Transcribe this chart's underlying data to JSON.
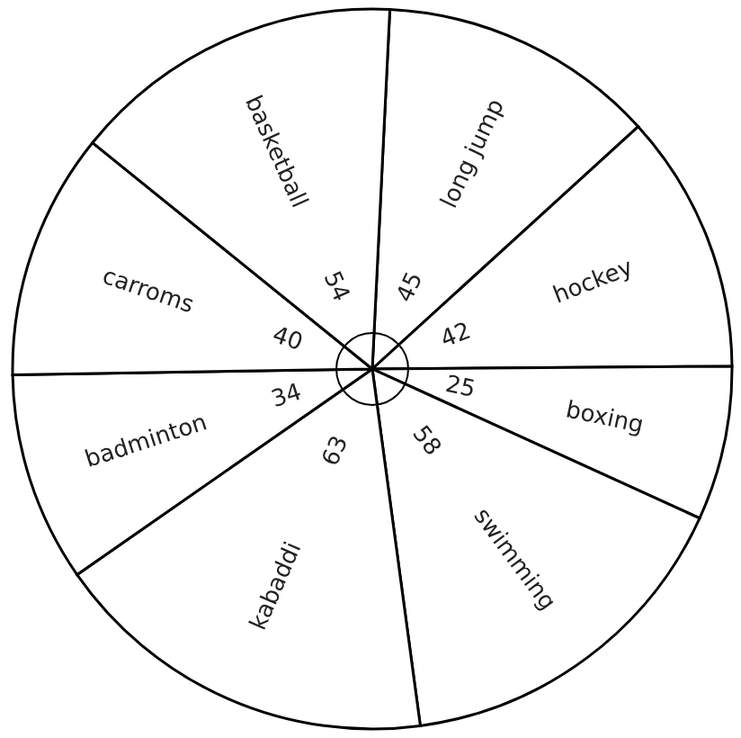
{
  "chart_data": {
    "type": "pie",
    "categories": [
      "long jump",
      "hockey",
      "boxing",
      "swimming",
      "kabaddi",
      "badminton",
      "carroms",
      "basketball"
    ],
    "values": [
      45,
      42,
      25,
      58,
      63,
      34,
      40,
      54
    ],
    "colors": [
      "#ffffff",
      "#ffffff",
      "#ffffff",
      "#ffffff",
      "#ffffff",
      "#ffffff",
      "#ffffff",
      "#ffffff"
    ],
    "data_labels": true
  }
}
